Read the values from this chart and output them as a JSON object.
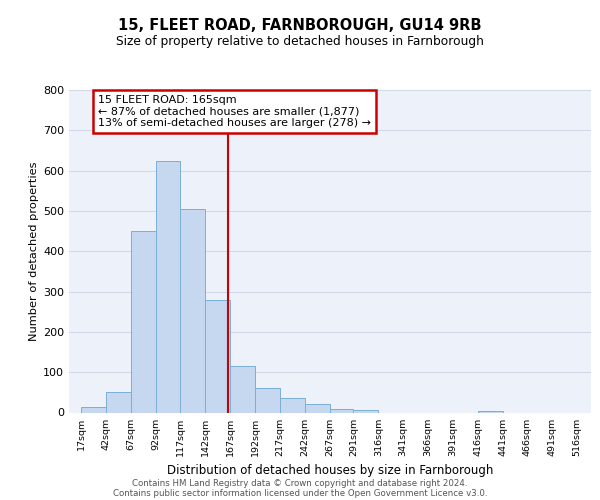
{
  "title1": "15, FLEET ROAD, FARNBOROUGH, GU14 9RB",
  "title2": "Size of property relative to detached houses in Farnborough",
  "xlabel": "Distribution of detached houses by size in Farnborough",
  "ylabel": "Number of detached properties",
  "bar_left_edges": [
    17,
    42,
    67,
    92,
    117,
    142,
    167,
    192,
    217,
    242,
    267,
    291,
    316,
    341,
    366,
    391,
    416,
    441,
    466,
    491
  ],
  "bar_heights": [
    13,
    50,
    450,
    625,
    505,
    280,
    115,
    60,
    37,
    22,
    8,
    5,
    0,
    0,
    0,
    0,
    3,
    0,
    0,
    0
  ],
  "bar_widths": [
    25,
    25,
    25,
    25,
    25,
    25,
    25,
    25,
    25,
    25,
    24,
    25,
    25,
    25,
    25,
    25,
    25,
    25,
    25,
    25
  ],
  "bar_color": "#c5d8ef",
  "bar_edge_color": "#7aafd4",
  "vline_x": 165,
  "vline_color": "#cc0000",
  "annotation_text_line1": "15 FLEET ROAD: 165sqm",
  "annotation_text_line2": "← 87% of detached houses are smaller (1,877)",
  "annotation_text_line3": "13% of semi-detached houses are larger (278) →",
  "xtick_labels": [
    "17sqm",
    "42sqm",
    "67sqm",
    "92sqm",
    "117sqm",
    "142sqm",
    "167sqm",
    "192sqm",
    "217sqm",
    "242sqm",
    "267sqm",
    "291sqm",
    "316sqm",
    "341sqm",
    "366sqm",
    "391sqm",
    "416sqm",
    "441sqm",
    "466sqm",
    "491sqm",
    "516sqm"
  ],
  "xtick_positions": [
    17,
    42,
    67,
    92,
    117,
    142,
    167,
    192,
    217,
    242,
    267,
    291,
    316,
    341,
    366,
    391,
    416,
    441,
    466,
    491,
    516
  ],
  "ylim": [
    0,
    800
  ],
  "xlim": [
    5,
    530
  ],
  "grid_color": "#d0d8e8",
  "bg_color": "#edf2fa",
  "footnote1": "Contains HM Land Registry data © Crown copyright and database right 2024.",
  "footnote2": "Contains public sector information licensed under the Open Government Licence v3.0."
}
